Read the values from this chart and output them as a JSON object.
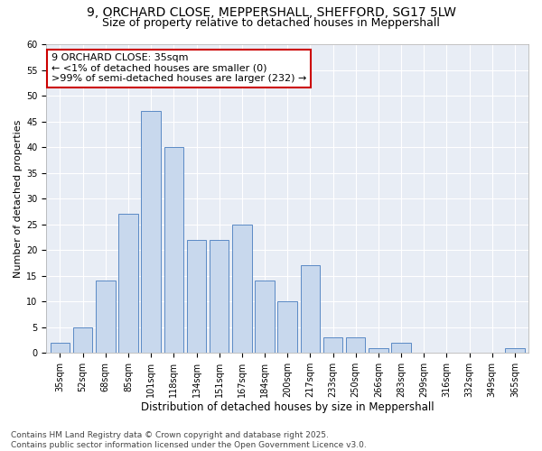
{
  "title1": "9, ORCHARD CLOSE, MEPPERSHALL, SHEFFORD, SG17 5LW",
  "title2": "Size of property relative to detached houses in Meppershall",
  "xlabel": "Distribution of detached houses by size in Meppershall",
  "ylabel": "Number of detached properties",
  "categories": [
    "35sqm",
    "52sqm",
    "68sqm",
    "85sqm",
    "101sqm",
    "118sqm",
    "134sqm",
    "151sqm",
    "167sqm",
    "184sqm",
    "200sqm",
    "217sqm",
    "233sqm",
    "250sqm",
    "266sqm",
    "283sqm",
    "299sqm",
    "316sqm",
    "332sqm",
    "349sqm",
    "365sqm"
  ],
  "values": [
    2,
    5,
    14,
    27,
    47,
    40,
    22,
    22,
    25,
    14,
    10,
    17,
    3,
    3,
    1,
    2,
    0,
    0,
    0,
    0,
    1
  ],
  "bar_color": "#c8d8ed",
  "bar_edge_color": "#5b8ac5",
  "annotation_box_text": "9 ORCHARD CLOSE: 35sqm\n← <1% of detached houses are smaller (0)\n>99% of semi-detached houses are larger (232) →",
  "annotation_box_color": "#ffffff",
  "annotation_box_edge_color": "#cc0000",
  "plot_bg_color": "#e8edf5",
  "fig_bg_color": "#ffffff",
  "grid_color": "#ffffff",
  "ylim": [
    0,
    60
  ],
  "yticks": [
    0,
    5,
    10,
    15,
    20,
    25,
    30,
    35,
    40,
    45,
    50,
    55,
    60
  ],
  "footer_text": "Contains HM Land Registry data © Crown copyright and database right 2025.\nContains public sector information licensed under the Open Government Licence v3.0.",
  "title1_fontsize": 10,
  "title2_fontsize": 9,
  "xlabel_fontsize": 8.5,
  "ylabel_fontsize": 8,
  "tick_fontsize": 7,
  "annotation_fontsize": 8,
  "footer_fontsize": 6.5
}
